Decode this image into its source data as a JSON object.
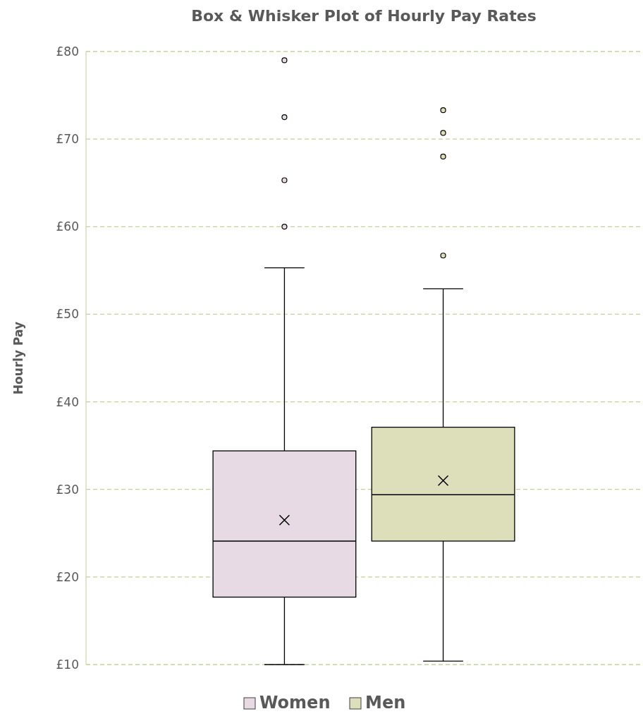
{
  "chart_data": {
    "type": "box",
    "title": "Box & Whisker Plot of Hourly Pay Rates",
    "ylabel": "Hourly Pay",
    "categories": [
      null
    ],
    "series": [
      {
        "name": "Women",
        "color": "#e8dae4",
        "boxes": [
          {
            "low": 10,
            "q1": 17.7,
            "median": 24.1,
            "q3": 34.4,
            "high": 55.3,
            "mean": 26.5,
            "outliers": [
              60,
              65.3,
              72.5,
              79
            ]
          }
        ]
      },
      {
        "name": "Men",
        "color": "#dddfbb",
        "boxes": [
          {
            "low": 10.4,
            "q1": 24.1,
            "median": 29.4,
            "q3": 37.1,
            "high": 52.9,
            "mean": 31,
            "outliers": [
              56.7,
              68,
              70.7,
              73.3
            ]
          }
        ]
      }
    ],
    "ylim": [
      10,
      80
    ],
    "yticks": [
      {
        "value": 10,
        "label": "£10"
      },
      {
        "value": 20,
        "label": "£20"
      },
      {
        "value": 30,
        "label": "£30"
      },
      {
        "value": 40,
        "label": "£40"
      },
      {
        "value": 50,
        "label": "£50"
      },
      {
        "value": 60,
        "label": "£60"
      },
      {
        "value": 70,
        "label": "£70"
      },
      {
        "value": 80,
        "label": "£80"
      }
    ],
    "grid": "y",
    "legend": "bottom"
  }
}
